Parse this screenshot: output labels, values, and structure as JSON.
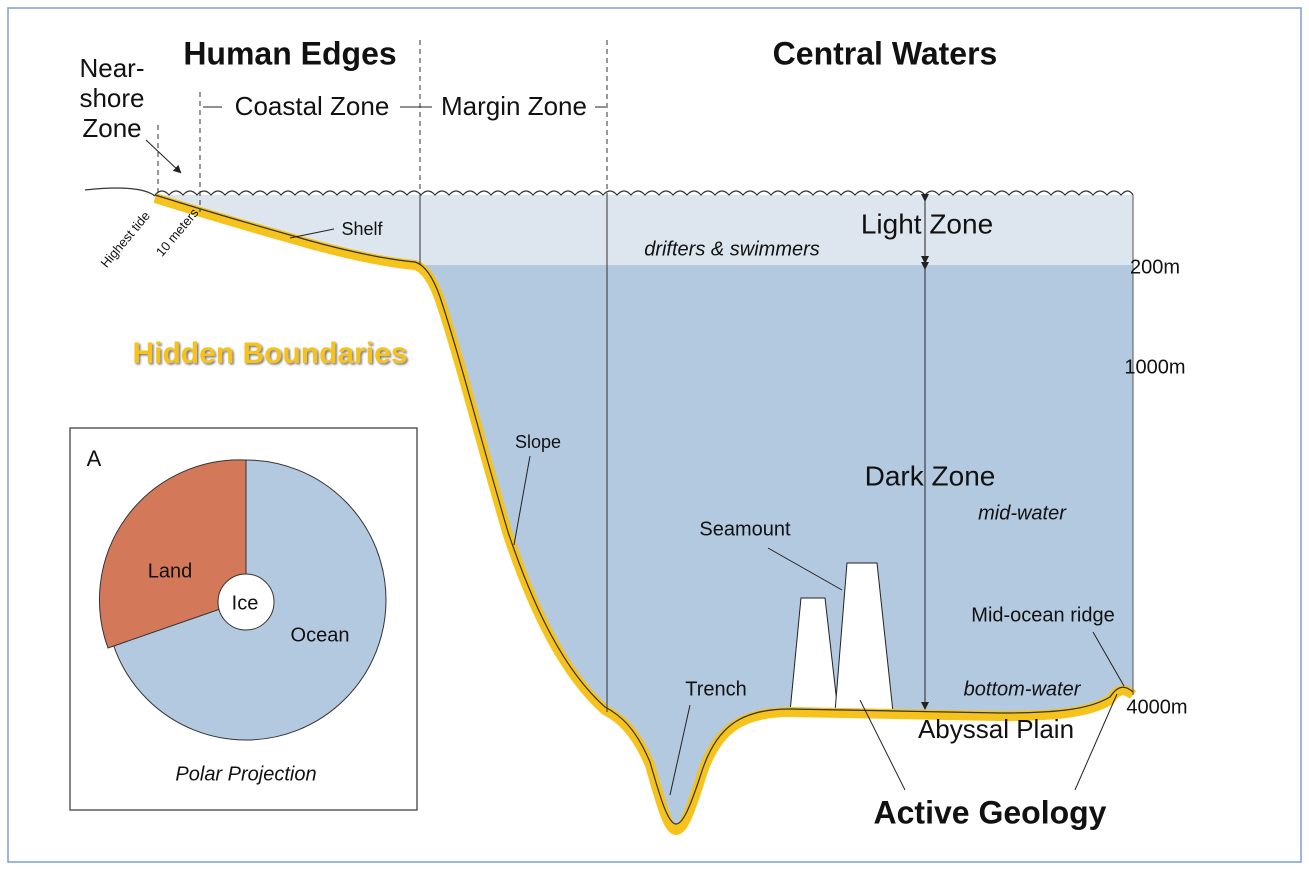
{
  "headers": {
    "human_edges": "Human Edges",
    "central_waters": "Central Waters"
  },
  "zones": {
    "nearshore": [
      "Near-",
      "shore",
      "Zone"
    ],
    "coastal": "Coastal Zone",
    "margin": "Margin Zone",
    "light": "Light Zone",
    "dark": "Dark Zone"
  },
  "water_labels": {
    "drifters": "drifters & swimmers",
    "mid_water": "mid-water",
    "bottom_water": "bottom-water"
  },
  "depths": [
    "200m",
    "1000m",
    "4000m"
  ],
  "features": {
    "highest_tide": "Highest tide",
    "ten_meters": "10 meters",
    "shelf": "Shelf",
    "slope": "Slope",
    "trench": "Trench",
    "seamount": "Seamount",
    "ridge": "Mid-ocean ridge",
    "abyssal": "Abyssal Plain"
  },
  "themes": {
    "hidden": "Hidden Boundaries",
    "geology": "Active Geology"
  },
  "inset": {
    "letter": "A",
    "land": "Land",
    "ice": "Ice",
    "ocean": "Ocean",
    "caption": "Polar Projection"
  }
}
